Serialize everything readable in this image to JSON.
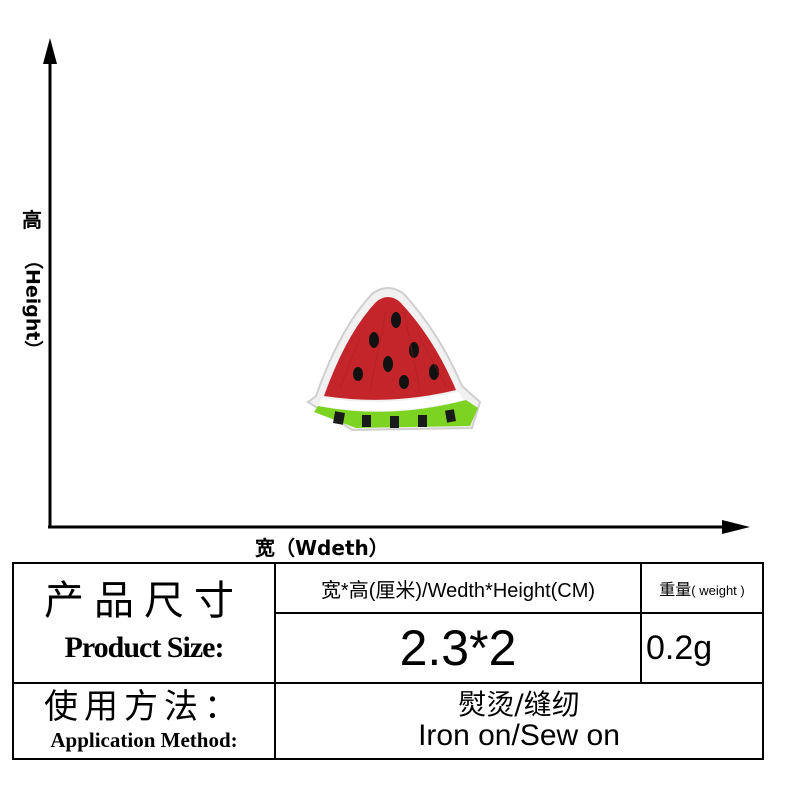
{
  "diagram": {
    "height_label_zh": "高",
    "height_label_en": "（Height）",
    "width_label": "宽（Wdeth）"
  },
  "product": {
    "name": "watermelon slice embroidered patch",
    "colors": {
      "flesh": "#c4252b",
      "seeds": "#111111",
      "rind_border": "#e8e8e8",
      "rind_green": "#7cd321"
    }
  },
  "table": {
    "product_size_zh": "产品尺寸",
    "product_size_en": "Product Size:",
    "size_header": "宽*高(厘米)/Wedth*Height(CM)",
    "weight_header_zh": "重量",
    "weight_header_en": "( weight )",
    "size_value": "2.3*2",
    "weight_value": "0.2g",
    "method_label_zh": "使用方法：",
    "method_label_en": "Application Method:",
    "method_value_zh": "熨烫/缝纫",
    "method_value_en": "Iron on/Sew on"
  }
}
